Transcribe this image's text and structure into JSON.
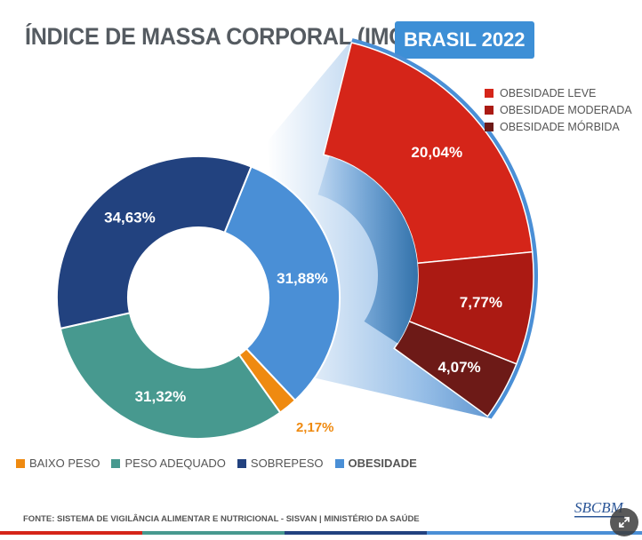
{
  "header": {
    "title": "ÍNDICE DE MASSA CORPORAL (IMC)",
    "badge": "BRASIL 2022"
  },
  "colors": {
    "baixo_peso": "#ef8a10",
    "peso_adequado": "#47998f",
    "sobrepeso": "#22427f",
    "obesidade": "#4a8fd6",
    "obesidade_leve": "#d52519",
    "obesidade_moderada": "#ab1a13",
    "obesidade_morbida": "#6d1a17",
    "badge": "#3d8fd6"
  },
  "chart_data": [
    {
      "type": "pie",
      "categories": [
        "BAIXO PESO",
        "PESO ADEQUADO",
        "SOBREPESO",
        "OBESIDADE"
      ],
      "values": [
        2.17,
        31.32,
        34.63,
        31.88
      ],
      "labels": [
        "2,17%",
        "31,32%",
        "34,63%",
        "31,88%"
      ]
    },
    {
      "type": "pie",
      "categories": [
        "OBESIDADE LEVE",
        "OBESIDADE MODERADA",
        "OBESIDADE MÓRBIDA"
      ],
      "values": [
        20.04,
        7.77,
        4.07
      ],
      "labels": [
        "20,04%",
        "7,77%",
        "4,07%"
      ]
    }
  ],
  "legend_bottom": [
    "BAIXO PESO",
    "PESO ADEQUADO",
    "SOBREPESO",
    "OBESIDADE"
  ],
  "legend_right": [
    "OBESIDADE LEVE",
    "OBESIDADE MODERADA",
    "OBESIDADE MÓRBIDA"
  ],
  "source": "FONTE: SISTEMA DE VIGILÂNCIA ALIMENTAR E NUTRICIONAL - SISVAN | MINISTÉRIO DA SAÚDE",
  "logo_text": "SBCBM",
  "icons": {
    "expand": "expand-icon"
  }
}
